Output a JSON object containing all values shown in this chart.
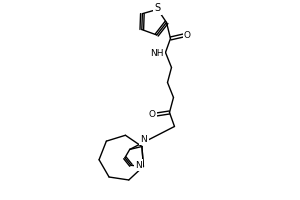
{
  "bg_color": "#ffffff",
  "line_color": "#000000",
  "line_width": 1.0,
  "font_size": 6.5,
  "figsize": [
    3.0,
    2.0
  ],
  "dpi": 100,
  "xlim": [
    0,
    300
  ],
  "ylim": [
    0,
    200
  ]
}
